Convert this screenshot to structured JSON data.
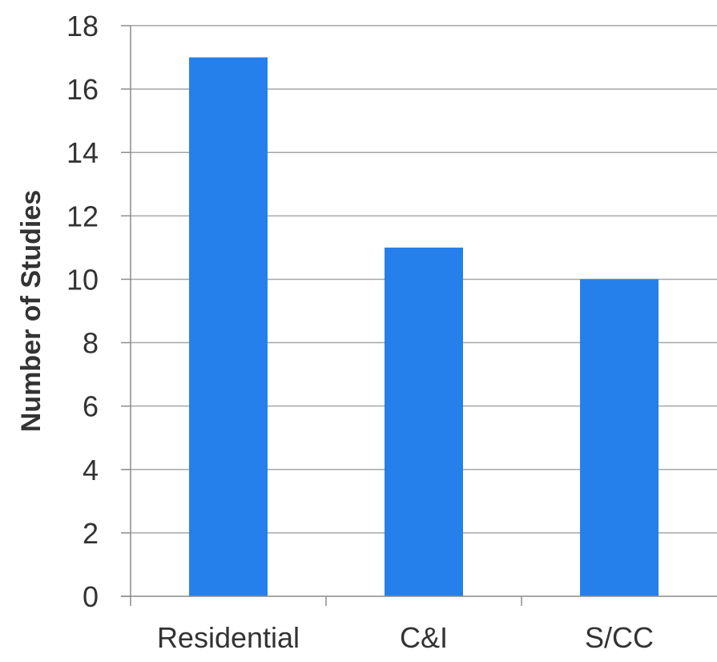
{
  "chart_data": {
    "type": "bar",
    "title": "",
    "xlabel": "",
    "ylabel": "Number of Studies",
    "categories": [
      "Residential",
      "C&I",
      "S/CC"
    ],
    "values": [
      17,
      11,
      10
    ],
    "ylim": [
      0,
      18
    ],
    "yticks": [
      0,
      2,
      4,
      6,
      8,
      10,
      12,
      14,
      16,
      18
    ],
    "grid": true,
    "legend": "none",
    "colors": {
      "bar": "#2680eb",
      "grid": "#a6a6a6",
      "axis": "#8c8c8c",
      "text": "#333333"
    }
  }
}
